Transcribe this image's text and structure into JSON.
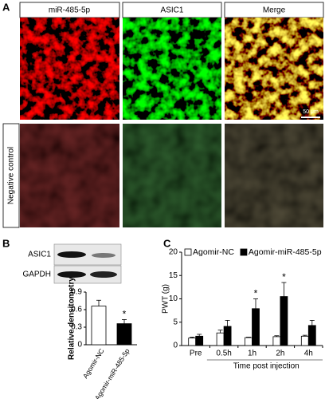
{
  "panel_a": {
    "label": "A",
    "columns": [
      "miR-485-5p",
      "ASIC1",
      "Merge"
    ],
    "row_label": "Negative control",
    "scale_bar": "50 μm"
  },
  "blot": {
    "labels": [
      "ASIC1",
      "GAPDH"
    ]
  },
  "chart_data": [
    {
      "type": "bar",
      "panel_label": "B",
      "y_label": "Relative densitometry",
      "categories": [
        "Agomir-NC",
        "Agomir-miR-485-5p"
      ],
      "values": [
        0.66,
        0.36
      ],
      "errors": [
        0.1,
        0.07
      ],
      "colors": [
        "#ffffff",
        "#000000"
      ],
      "markers": [
        null,
        "*"
      ],
      "ylim": [
        0,
        0.9
      ],
      "yticks": [
        0,
        0.3,
        0.6,
        0.9
      ]
    },
    {
      "type": "grouped-bar",
      "panel_label": "C",
      "y_label": "PWT (g)",
      "x_label": "Time post injection",
      "categories": [
        "Pre",
        "0.5h",
        "1h",
        "2h",
        "4h"
      ],
      "series": [
        {
          "name": "Agomir-NC",
          "color": "#ffffff",
          "values": [
            1.6,
            2.7,
            1.7,
            1.9,
            2.0
          ],
          "errors": [
            0.2,
            0.6,
            0.1,
            0.2,
            0.2
          ],
          "markers": [
            null,
            null,
            null,
            null,
            null
          ]
        },
        {
          "name": "Agomir-miR-485-5p",
          "color": "#000000",
          "values": [
            2.0,
            4.1,
            7.9,
            10.5,
            4.3
          ],
          "errors": [
            0.4,
            1.3,
            2.1,
            3.0,
            1.1
          ],
          "markers": [
            null,
            null,
            "*",
            "*",
            null
          ]
        }
      ],
      "ylim": [
        0,
        20
      ],
      "yticks": [
        0,
        5,
        10,
        15,
        20
      ],
      "legend": "top"
    }
  ]
}
